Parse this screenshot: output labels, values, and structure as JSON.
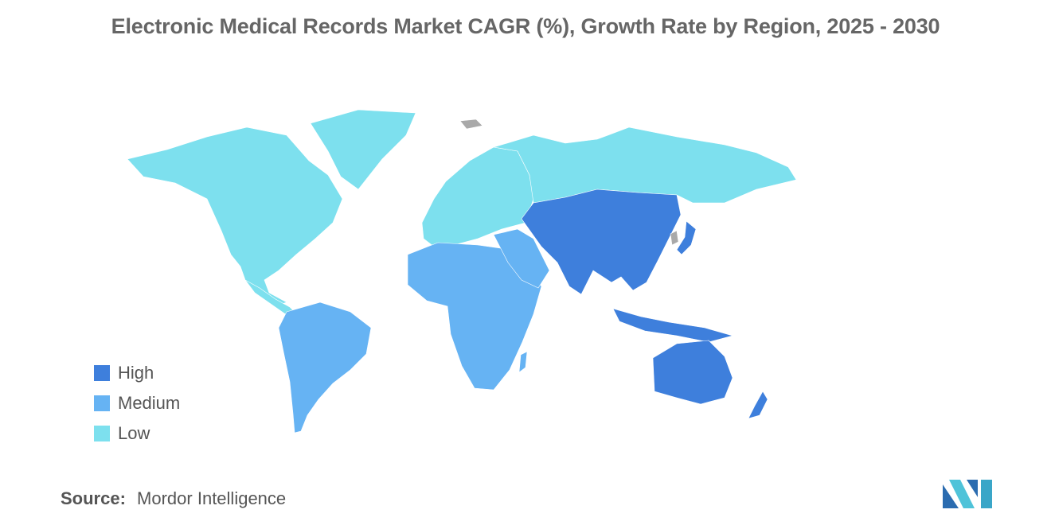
{
  "title": "Electronic Medical Records Market CAGR (%), Growth Rate by Region, 2025 - 2030",
  "legend": [
    {
      "label": "High",
      "color": "#3e7fdc"
    },
    {
      "label": "Medium",
      "color": "#66b3f3"
    },
    {
      "label": "Low",
      "color": "#7de0ee"
    }
  ],
  "regions": [
    {
      "name": "North America",
      "level": "Low"
    },
    {
      "name": "Europe",
      "level": "Low"
    },
    {
      "name": "Russia",
      "level": "Low"
    },
    {
      "name": "South America",
      "level": "Medium"
    },
    {
      "name": "Africa",
      "level": "Medium"
    },
    {
      "name": "Middle East",
      "level": "Medium"
    },
    {
      "name": "Asia",
      "level": "High"
    },
    {
      "name": "Oceania",
      "level": "High"
    }
  ],
  "colors": {
    "no_data": "#a9a9a9",
    "title": "#666666",
    "text": "#555555"
  },
  "source": {
    "label": "Source:",
    "value": "Mordor Intelligence"
  }
}
